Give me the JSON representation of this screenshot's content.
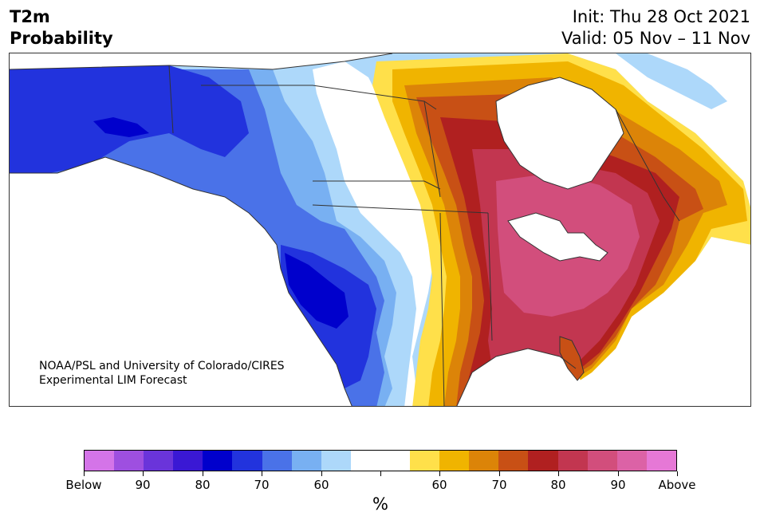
{
  "header": {
    "variable": "T2m",
    "product": "Probability",
    "init": "Init: Thu 28 Oct 2021",
    "valid": "Valid: 05 Nov – 11 Nov"
  },
  "credit": {
    "line1": "NOAA/PSL and University of Colorado/CIRES",
    "line2": "Experimental LIM Forecast"
  },
  "colorbar": {
    "unit": "%",
    "colors": [
      "#d474e8",
      "#9e4fe0",
      "#6a34da",
      "#3a18d4",
      "#0000cc",
      "#2233dd",
      "#4a72e8",
      "#78b0f2",
      "#add8fa",
      "#ffffff",
      "#ffffff",
      "#ffe04a",
      "#f0b400",
      "#dc8408",
      "#c85015",
      "#b02020",
      "#c23650",
      "#d24e7c",
      "#dc62a6",
      "#e678d6"
    ],
    "labels": [
      "Below",
      "90",
      "80",
      "70",
      "60",
      "",
      "60",
      "70",
      "80",
      "90",
      "Above"
    ]
  },
  "map": {
    "colors": {
      "below_90": "#6a34da",
      "below_80": "#0000cc",
      "below_70": "#2233dd",
      "below_60": "#4a72e8",
      "below_55": "#78b0f2",
      "below_50": "#add8fa",
      "above_50": "#ffe04a",
      "above_55": "#f0b400",
      "above_60": "#dc8408",
      "above_70": "#c85015",
      "above_80": "#b02020",
      "above_85": "#c23650",
      "above_90": "#d24e7c",
      "coast": "#333333"
    }
  }
}
